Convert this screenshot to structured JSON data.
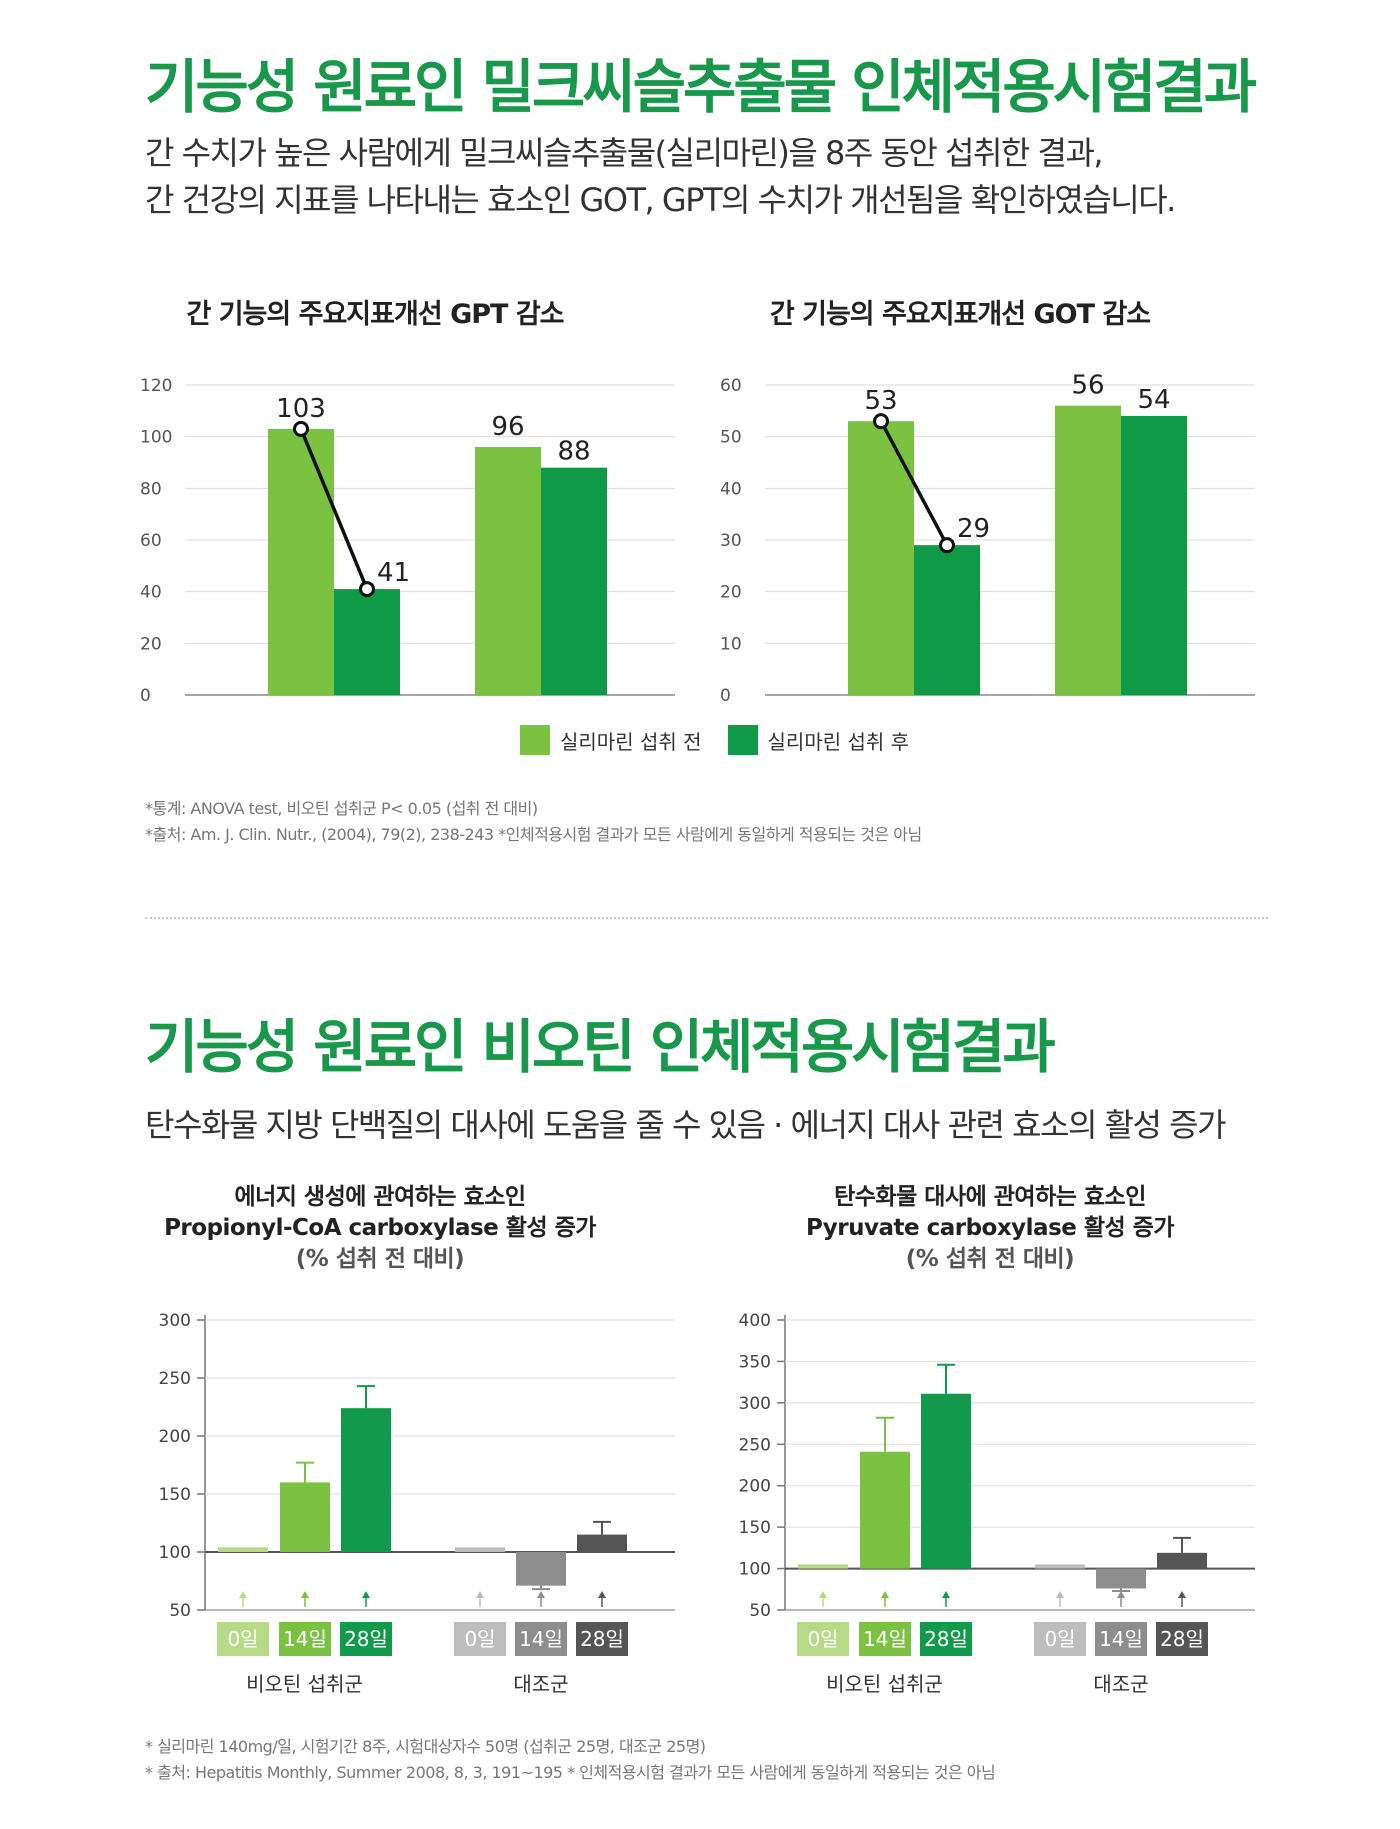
{
  "section1": {
    "title": "기능성 원료인 밀크씨슬추출물 인체적용시험결과",
    "desc_line1": "간 수치가 높은 사람에게 밀크씨슬추출물(실리마린)을 8주 동안 섭취한 결과,",
    "desc_line2": "간 건강의 지표를 나타내는 효소인 GOT, GPT의 수치가 개선됨을 확인하였습니다.",
    "chart1_title": "간 기능의 주요지표개선 GPT 감소",
    "chart2_title": "간 기능의 주요지표개선 GOT 감소",
    "legend_before": "실리마린 섭취 전",
    "legend_after": "실리마린 섭취 후",
    "note1": "*통계: ANOVA test, 비오틴 섭취군 P< 0.05 (섭취 전 대비)",
    "note2": "*출처: Am. J. Clin. Nutr., (2004), 79(2), 238-243   *인체적용시험 결과가 모든 사람에게 동일하게 적용되는 것은 아님"
  },
  "section2": {
    "title": "기능성 원료인 비오틴 인체적용시험결과",
    "desc": "탄수화물 지방 단백질의 대사에 도움을 줄 수 있음 · 에너지 대사 관련 효소의 활성 증가",
    "chart3_title_l1": "에너지 생성에 관여하는 효소인",
    "chart3_title_l2": "Propionyl-CoA carboxylase 활성 증가",
    "chart3_title_l3": "(% 섭취 전 대비)",
    "chart4_title_l1": "탄수화물 대사에 관여하는 효소인",
    "chart4_title_l2": "Pyruvate carboxylase 활성 증가",
    "chart4_title_l3": "(% 섭취 전 대비)",
    "group_biotin": "비오틴 섭취군",
    "group_control": "대조군",
    "note1": "* 실리마린 140mg/일, 시험기간 8주, 시험대상자수 50명 (섭취군 25명, 대조군 25명)",
    "note2": "* 출처: Hepatitis Monthly, Summer 2008, 8, 3, 191~195   * 인체적용시험 결과가 모든 사람에게 동일하게 적용되는 것은 아님"
  },
  "colors": {
    "title_green": "#17984a",
    "before": "#7cc242",
    "after": "#0f9a48",
    "d0_biotin": "#b7da86",
    "d14_biotin": "#7cc242",
    "d28_biotin": "#119a4a",
    "d0_control": "#bdbdbd",
    "d14_control": "#8d8d8d",
    "d28_control": "#555555"
  },
  "chart_data": [
    {
      "type": "bar",
      "title": "간 기능의 주요지표개선 GPT 감소",
      "categories": [
        "",
        ""
      ],
      "series": [
        {
          "name": "실리마린 섭취 전",
          "values": [
            103,
            96
          ]
        },
        {
          "name": "실리마린 섭취 후",
          "values": [
            41,
            88
          ]
        }
      ],
      "data_labels": [
        "103",
        "41",
        "96",
        "88"
      ],
      "ylim": [
        0,
        120
      ],
      "yticks": [
        "0",
        "20",
        "40",
        "60",
        "80",
        "100",
        "120"
      ],
      "connector": [
        0
      ],
      "grid": true,
      "legend": "bottom"
    },
    {
      "type": "bar",
      "title": "간 기능의 주요지표개선 GOT 감소",
      "categories": [
        "",
        ""
      ],
      "series": [
        {
          "name": "실리마린 섭취 전",
          "values": [
            53,
            56
          ]
        },
        {
          "name": "실리마린 섭취 후",
          "values": [
            29,
            54
          ]
        }
      ],
      "data_labels": [
        "53",
        "29",
        "56",
        "54"
      ],
      "ylim": [
        0,
        60
      ],
      "yticks": [
        "0",
        "10",
        "20",
        "30",
        "40",
        "50",
        "60"
      ],
      "connector": [
        0
      ],
      "grid": true,
      "legend": "bottom"
    },
    {
      "type": "bar",
      "title": "Propionyl-CoA carboxylase 활성 증가",
      "categories": [
        "0일",
        "14일",
        "28일",
        "0일",
        "14일",
        "28일"
      ],
      "groups": [
        "비오틴 섭취군",
        "대조군"
      ],
      "values": [
        104,
        160,
        224,
        104,
        71,
        115
      ],
      "errors": [
        0,
        17,
        19,
        0,
        3,
        11
      ],
      "baseline": 100,
      "ylim": [
        50,
        300
      ],
      "yticks": [
        "50",
        "100",
        "150",
        "200",
        "250",
        "300"
      ],
      "grid": true
    },
    {
      "type": "bar",
      "title": "Pyruvate carboxylase 활성 증가",
      "categories": [
        "0일",
        "14일",
        "28일",
        "0일",
        "14일",
        "28일"
      ],
      "groups": [
        "비오틴 섭취군",
        "대조군"
      ],
      "values": [
        105,
        241,
        311,
        105,
        76,
        119
      ],
      "errors": [
        0,
        41,
        35,
        0,
        3,
        18
      ],
      "baseline": 100,
      "ylim": [
        50,
        400
      ],
      "yticks": [
        "50",
        "100",
        "150",
        "200",
        "250",
        "300",
        "350",
        "400"
      ],
      "grid": true
    }
  ]
}
